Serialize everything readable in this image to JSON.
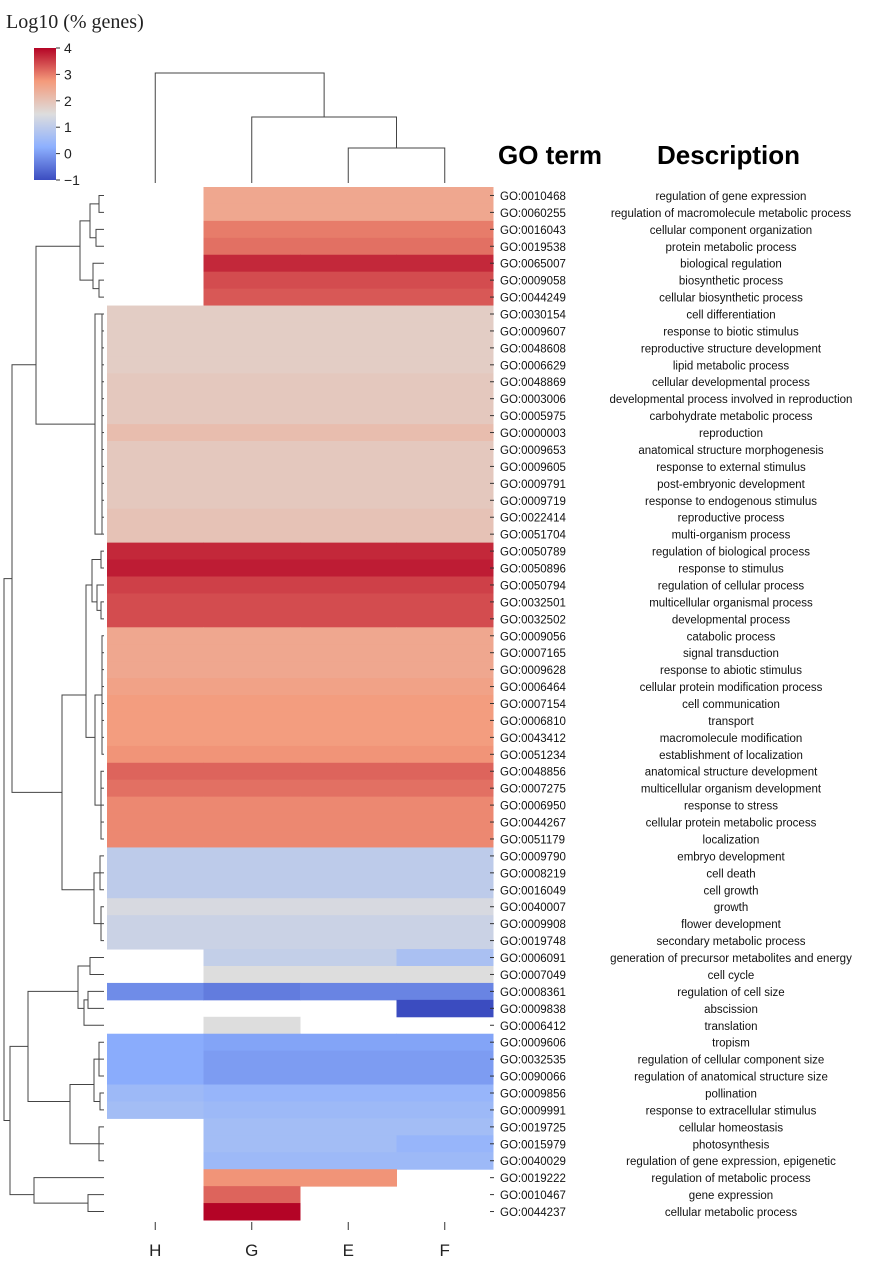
{
  "chart_data": {
    "type": "heatmap",
    "title": "Log10 (% genes)",
    "colorbar": {
      "min": -1,
      "max": 4,
      "ticks": [
        -1,
        0,
        1,
        2,
        3,
        4
      ],
      "tick_labels": [
        "−1",
        "0",
        "1",
        "2",
        "3",
        "4"
      ],
      "colormap": "coolwarm",
      "stops": [
        "#3b4cc0",
        "#8db0fe",
        "#dddddd",
        "#f49a7b",
        "#b40426"
      ]
    },
    "header_go": "GO term",
    "header_desc": "Description",
    "columns": [
      "H",
      "G",
      "E",
      "F"
    ],
    "rows": [
      {
        "go": "GO:0010468",
        "desc": "regulation of gene expression",
        "values": [
          null,
          2.5,
          2.5,
          2.5
        ]
      },
      {
        "go": "GO:0060255",
        "desc": "regulation of macromolecule metabolic process",
        "values": [
          null,
          2.5,
          2.5,
          2.5
        ]
      },
      {
        "go": "GO:0016043",
        "desc": "cellular component organization",
        "values": [
          null,
          3.0,
          3.0,
          3.0
        ]
      },
      {
        "go": "GO:0019538",
        "desc": "protein metabolic process",
        "values": [
          null,
          3.1,
          3.1,
          3.1
        ]
      },
      {
        "go": "GO:0065007",
        "desc": "biological regulation",
        "values": [
          null,
          3.7,
          3.7,
          3.7
        ]
      },
      {
        "go": "GO:0009058",
        "desc": "biosynthetic process",
        "values": [
          null,
          3.4,
          3.4,
          3.4
        ]
      },
      {
        "go": "GO:0044249",
        "desc": "cellular biosynthetic process",
        "values": [
          null,
          3.3,
          3.3,
          3.3
        ]
      },
      {
        "go": "GO:0030154",
        "desc": "cell differentiation",
        "values": [
          1.8,
          1.8,
          1.8,
          1.8
        ]
      },
      {
        "go": "GO:0009607",
        "desc": "response to biotic stimulus",
        "values": [
          1.8,
          1.8,
          1.8,
          1.8
        ]
      },
      {
        "go": "GO:0048608",
        "desc": "reproductive structure development",
        "values": [
          1.8,
          1.8,
          1.8,
          1.8
        ]
      },
      {
        "go": "GO:0006629",
        "desc": "lipid metabolic process",
        "values": [
          1.8,
          1.8,
          1.8,
          1.8
        ]
      },
      {
        "go": "GO:0048869",
        "desc": "cellular developmental process",
        "values": [
          1.9,
          1.9,
          1.9,
          1.9
        ]
      },
      {
        "go": "GO:0003006",
        "desc": "developmental process involved in reproduction",
        "values": [
          1.9,
          1.9,
          1.9,
          1.9
        ]
      },
      {
        "go": "GO:0005975",
        "desc": "carbohydrate metabolic process",
        "values": [
          1.9,
          1.9,
          1.9,
          1.9
        ]
      },
      {
        "go": "GO:0000003",
        "desc": "reproduction",
        "values": [
          2.1,
          2.1,
          2.1,
          2.1
        ]
      },
      {
        "go": "GO:0009653",
        "desc": "anatomical structure morphogenesis",
        "values": [
          1.9,
          1.9,
          1.9,
          1.9
        ]
      },
      {
        "go": "GO:0009605",
        "desc": "response to external stimulus",
        "values": [
          1.9,
          1.9,
          1.9,
          1.9
        ]
      },
      {
        "go": "GO:0009791",
        "desc": "post-embryonic development",
        "values": [
          1.9,
          1.9,
          1.9,
          1.9
        ]
      },
      {
        "go": "GO:0009719",
        "desc": "response to endogenous stimulus",
        "values": [
          1.9,
          1.9,
          1.9,
          1.9
        ]
      },
      {
        "go": "GO:0022414",
        "desc": "reproductive process",
        "values": [
          2.0,
          2.0,
          2.0,
          2.0
        ]
      },
      {
        "go": "GO:0051704",
        "desc": "multi-organism process",
        "values": [
          2.0,
          2.0,
          2.0,
          2.0
        ]
      },
      {
        "go": "GO:0050789",
        "desc": "regulation of biological process",
        "values": [
          3.7,
          3.7,
          3.7,
          3.7
        ]
      },
      {
        "go": "GO:0050896",
        "desc": "response to stimulus",
        "values": [
          3.8,
          3.8,
          3.8,
          3.8
        ]
      },
      {
        "go": "GO:0050794",
        "desc": "regulation of cellular process",
        "values": [
          3.5,
          3.5,
          3.5,
          3.5
        ]
      },
      {
        "go": "GO:0032501",
        "desc": "multicellular organismal process",
        "values": [
          3.4,
          3.4,
          3.4,
          3.4
        ]
      },
      {
        "go": "GO:0032502",
        "desc": "developmental process",
        "values": [
          3.4,
          3.4,
          3.4,
          3.4
        ]
      },
      {
        "go": "GO:0009056",
        "desc": "catabolic process",
        "values": [
          2.5,
          2.5,
          2.5,
          2.5
        ]
      },
      {
        "go": "GO:0007165",
        "desc": "signal transduction",
        "values": [
          2.5,
          2.5,
          2.5,
          2.5
        ]
      },
      {
        "go": "GO:0009628",
        "desc": "response to abiotic stimulus",
        "values": [
          2.5,
          2.5,
          2.5,
          2.5
        ]
      },
      {
        "go": "GO:0006464",
        "desc": "cellular protein modification process",
        "values": [
          2.6,
          2.6,
          2.6,
          2.6
        ]
      },
      {
        "go": "GO:0007154",
        "desc": "cell communication",
        "values": [
          2.7,
          2.7,
          2.7,
          2.7
        ]
      },
      {
        "go": "GO:0006810",
        "desc": "transport",
        "values": [
          2.7,
          2.7,
          2.7,
          2.7
        ]
      },
      {
        "go": "GO:0043412",
        "desc": "macromolecule modification",
        "values": [
          2.7,
          2.7,
          2.7,
          2.7
        ]
      },
      {
        "go": "GO:0051234",
        "desc": "establishment of localization",
        "values": [
          2.8,
          2.8,
          2.8,
          2.8
        ]
      },
      {
        "go": "GO:0048856",
        "desc": "anatomical structure development",
        "values": [
          3.2,
          3.2,
          3.2,
          3.2
        ]
      },
      {
        "go": "GO:0007275",
        "desc": "multicellular organism development",
        "values": [
          3.1,
          3.1,
          3.1,
          3.1
        ]
      },
      {
        "go": "GO:0006950",
        "desc": "response to stress",
        "values": [
          2.9,
          2.9,
          2.9,
          2.9
        ]
      },
      {
        "go": "GO:0044267",
        "desc": "cellular protein metabolic process",
        "values": [
          2.9,
          2.9,
          2.9,
          2.9
        ]
      },
      {
        "go": "GO:0051179",
        "desc": "localization",
        "values": [
          2.9,
          2.9,
          2.9,
          2.9
        ]
      },
      {
        "go": "GO:0009790",
        "desc": "embryo development",
        "values": [
          1.0,
          1.0,
          1.0,
          1.0
        ]
      },
      {
        "go": "GO:0008219",
        "desc": "cell death",
        "values": [
          1.0,
          1.0,
          1.0,
          1.0
        ]
      },
      {
        "go": "GO:0016049",
        "desc": "cell growth",
        "values": [
          1.0,
          1.0,
          1.0,
          1.0
        ]
      },
      {
        "go": "GO:0040007",
        "desc": "growth",
        "values": [
          1.4,
          1.4,
          1.4,
          1.4
        ]
      },
      {
        "go": "GO:0009908",
        "desc": "flower development",
        "values": [
          1.2,
          1.2,
          1.2,
          1.2
        ]
      },
      {
        "go": "GO:0019748",
        "desc": "secondary metabolic process",
        "values": [
          1.2,
          1.2,
          1.2,
          1.2
        ]
      },
      {
        "go": "GO:0006091",
        "desc": "generation of precursor metabolites and energy",
        "values": [
          null,
          1.1,
          1.1,
          0.7
        ]
      },
      {
        "go": "GO:0007049",
        "desc": "cell cycle",
        "values": [
          null,
          1.5,
          1.5,
          1.5
        ]
      },
      {
        "go": "GO:0008361",
        "desc": "regulation of cell size",
        "values": [
          -0.2,
          -0.4,
          -0.3,
          -0.3
        ]
      },
      {
        "go": "GO:0009838",
        "desc": "abscission",
        "values": [
          null,
          null,
          null,
          -1.0
        ]
      },
      {
        "go": "GO:0006412",
        "desc": "translation",
        "values": [
          null,
          1.5,
          null,
          null
        ]
      },
      {
        "go": "GO:0009606",
        "desc": "tropism",
        "values": [
          0.2,
          0.1,
          0.1,
          0.1
        ]
      },
      {
        "go": "GO:0032535",
        "desc": "regulation of cellular component size",
        "values": [
          0.2,
          0.0,
          0.0,
          0.0
        ]
      },
      {
        "go": "GO:0090066",
        "desc": "regulation of anatomical structure size",
        "values": [
          0.2,
          0.0,
          0.0,
          0.0
        ]
      },
      {
        "go": "GO:0009856",
        "desc": "pollination",
        "values": [
          0.5,
          0.4,
          0.4,
          0.4
        ]
      },
      {
        "go": "GO:0009991",
        "desc": "response to extracellular stimulus",
        "values": [
          0.6,
          0.5,
          0.5,
          0.5
        ]
      },
      {
        "go": "GO:0019725",
        "desc": "cellular homeostasis",
        "values": [
          null,
          0.6,
          0.6,
          0.6
        ]
      },
      {
        "go": "GO:0015979",
        "desc": "photosynthesis",
        "values": [
          null,
          0.6,
          0.6,
          0.4
        ]
      },
      {
        "go": "GO:0040029",
        "desc": "regulation of gene expression, epigenetic",
        "values": [
          null,
          0.5,
          0.5,
          0.5
        ]
      },
      {
        "go": "GO:0019222",
        "desc": "regulation of metabolic process",
        "values": [
          null,
          2.8,
          2.8,
          null
        ]
      },
      {
        "go": "GO:0010467",
        "desc": "gene expression",
        "values": [
          null,
          3.2,
          null,
          null
        ]
      },
      {
        "go": "GO:0044237",
        "desc": "cellular metabolic process",
        "values": [
          null,
          4.0,
          null,
          null
        ]
      }
    ],
    "col_dendrogram": {
      "merges": [
        [
          "E",
          "F"
        ],
        [
          "G",
          "EF"
        ],
        [
          "H",
          "GEF"
        ]
      ]
    },
    "row_dendrogram": {
      "note": "hierarchical clustering of GO terms"
    }
  }
}
